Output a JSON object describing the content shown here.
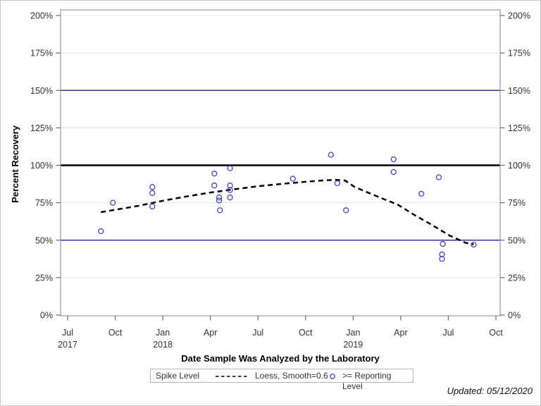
{
  "figure": {
    "y_axis_title": "Percent Recovery",
    "x_axis_title": "Date Sample Was Analyzed by the Laboratory",
    "updated_note": "Updated: 05/12/2020"
  },
  "legend": {
    "title": "Spike Level",
    "loess_label": "Loess, Smooth=0.6",
    "marker_label": ">= Reporting Level"
  },
  "colors": {
    "marker": "#4444c4",
    "reference_line_blue": "#35359f",
    "spike_line": "#000000",
    "loess_line": "#000000",
    "gridline": "#e7e7e7",
    "axis_frame": "#9b9b9b",
    "tick": "#6b6b6b",
    "tick_label": "#333333"
  },
  "chart_data": {
    "type": "scatter",
    "title": "",
    "xlabel": "Date Sample Was Analyzed by the Laboratory",
    "ylabel": "Percent Recovery",
    "x_unit": "months since 2017-07-01",
    "x_range_months": [
      -0.45,
      27.3
    ],
    "y_range_percent": [
      -0.5,
      203.8
    ],
    "grid": true,
    "x_ticks": {
      "month_index": [
        0,
        3,
        6,
        9,
        12,
        15,
        18,
        21,
        24,
        27
      ],
      "labels": [
        "Jul",
        "Oct",
        "Jan",
        "Apr",
        "Jul",
        "Oct",
        "Jan",
        "Apr",
        "Jul",
        "Oct"
      ],
      "year_labels": [
        {
          "month_index": 0,
          "label": "2017"
        },
        {
          "month_index": 6,
          "label": "2018"
        },
        {
          "month_index": 18,
          "label": "2019"
        }
      ]
    },
    "y_ticks": {
      "values": [
        0,
        25,
        50,
        75,
        100,
        125,
        150,
        175,
        200
      ],
      "suffix": "%",
      "both_sides": true
    },
    "reference_lines": [
      {
        "y": 50,
        "color": "#35359f",
        "width": 1.4,
        "name": "reporting-level-50"
      },
      {
        "y": 100,
        "color": "#000000",
        "width": 2.6,
        "name": "spike-level-100"
      },
      {
        "y": 150,
        "color": "#35359f",
        "width": 1.4,
        "name": "reporting-level-150"
      }
    ],
    "series": [
      {
        "name": ">= Reporting Level",
        "type": "scatter",
        "marker": "open-circle",
        "points": [
          [
            2.1,
            56.0
          ],
          [
            2.85,
            75.0
          ],
          [
            5.34,
            85.5
          ],
          [
            5.34,
            81.5
          ],
          [
            5.34,
            72.5
          ],
          [
            9.25,
            94.5
          ],
          [
            9.25,
            86.5
          ],
          [
            9.55,
            78.5
          ],
          [
            9.55,
            76.5
          ],
          [
            9.6,
            70.0
          ],
          [
            10.24,
            98.0
          ],
          [
            10.24,
            86.5
          ],
          [
            10.24,
            83.5
          ],
          [
            10.24,
            78.5
          ],
          [
            14.2,
            91.0
          ],
          [
            16.6,
            107.0
          ],
          [
            17.0,
            88.0
          ],
          [
            17.55,
            70.0
          ],
          [
            20.55,
            104.0
          ],
          [
            20.55,
            95.5
          ],
          [
            22.3,
            81.0
          ],
          [
            23.4,
            92.0
          ],
          [
            23.65,
            47.5
          ],
          [
            23.6,
            40.5
          ],
          [
            23.6,
            37.5
          ],
          [
            25.6,
            47.0
          ]
        ]
      },
      {
        "name": "Loess, Smooth=0.6",
        "type": "line",
        "dashed": true,
        "points": [
          [
            2.1,
            68.7
          ],
          [
            3.0,
            70.3
          ],
          [
            4.5,
            73.0
          ],
          [
            6.0,
            76.3
          ],
          [
            7.5,
            79.2
          ],
          [
            9.0,
            81.8
          ],
          [
            10.5,
            84.0
          ],
          [
            12.0,
            86.0
          ],
          [
            13.5,
            87.6
          ],
          [
            15.0,
            89.0
          ],
          [
            16.0,
            89.8
          ],
          [
            16.9,
            90.3
          ],
          [
            17.5,
            89.8
          ],
          [
            18.1,
            85.5
          ],
          [
            19.0,
            81.5
          ],
          [
            19.8,
            78.0
          ],
          [
            20.8,
            73.8
          ],
          [
            21.8,
            67.2
          ],
          [
            22.9,
            60.6
          ],
          [
            24.1,
            53.0
          ],
          [
            25.1,
            48.2
          ],
          [
            25.6,
            47.2
          ]
        ]
      }
    ],
    "legend_position": "bottom"
  }
}
